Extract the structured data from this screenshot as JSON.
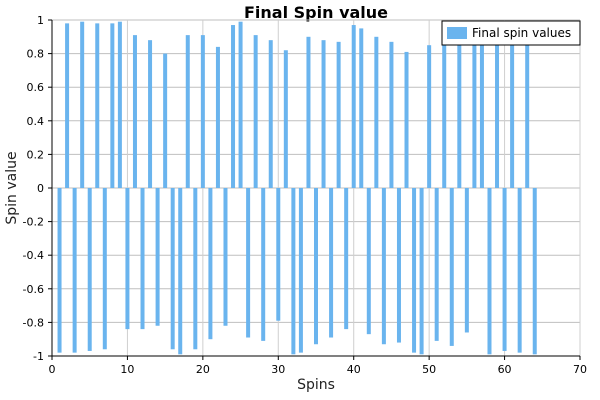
{
  "chart_data": {
    "type": "bar",
    "title": "Final Spin value",
    "xlabel": "Spins",
    "ylabel": "Spin value",
    "xlim": [
      0,
      70
    ],
    "ylim": [
      -1,
      1
    ],
    "x_ticks": [
      0,
      10,
      20,
      30,
      40,
      50,
      60,
      70
    ],
    "y_ticks": [
      -1,
      -0.8,
      -0.6,
      -0.4,
      -0.2,
      0,
      0.2,
      0.4,
      0.6,
      0.8,
      1
    ],
    "grid": "on",
    "legend_position": "top-right",
    "bar_color": "#6ab4ee",
    "series": [
      {
        "name": "Final spin values",
        "x": [
          1,
          2,
          3,
          4,
          5,
          6,
          7,
          8,
          9,
          10,
          11,
          12,
          13,
          14,
          15,
          16,
          17,
          18,
          19,
          20,
          21,
          22,
          23,
          24,
          25,
          26,
          27,
          28,
          29,
          30,
          31,
          32,
          33,
          34,
          35,
          36,
          37,
          38,
          39,
          40,
          41,
          42,
          43,
          44,
          45,
          46,
          47,
          48,
          49,
          50,
          51,
          52,
          53,
          54,
          55,
          56,
          57,
          58,
          59,
          60,
          61,
          62,
          63,
          64
        ],
        "values": [
          -0.98,
          0.98,
          -0.98,
          0.99,
          -0.97,
          0.98,
          -0.96,
          0.98,
          0.99,
          -0.84,
          0.91,
          -0.84,
          0.88,
          -0.82,
          0.8,
          -0.96,
          -0.99,
          0.91,
          -0.96,
          0.91,
          -0.9,
          0.84,
          -0.82,
          0.97,
          0.99,
          -0.89,
          0.91,
          -0.91,
          0.88,
          -0.79,
          0.82,
          -0.99,
          -0.98,
          0.9,
          -0.93,
          0.88,
          -0.89,
          0.87,
          -0.84,
          0.97,
          0.95,
          -0.87,
          0.9,
          -0.93,
          0.87,
          -0.92,
          0.81,
          -0.98,
          -0.99,
          0.85,
          -0.91,
          0.88,
          -0.94,
          0.86,
          -0.86,
          0.88,
          0.86,
          -0.99,
          0.9,
          -0.97,
          0.88,
          -0.98,
          0.88,
          -0.99
        ]
      }
    ]
  }
}
